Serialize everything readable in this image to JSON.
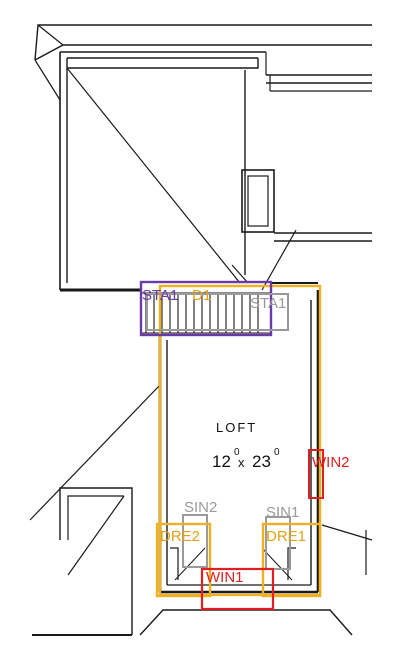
{
  "room": {
    "name": "LOFT",
    "dim_width": "12",
    "dim_width_sup": "0",
    "dim_sep": "x",
    "dim_length": "23",
    "dim_length_sup": "0"
  },
  "annotations": [
    {
      "id": "sta1-label",
      "text": "STA1",
      "color": "#6a3aa8"
    },
    {
      "id": "sta1-gray-label",
      "text": "STA1",
      "color": "#9a9a9a"
    },
    {
      "id": "d1-label",
      "text": "D1",
      "color": "#e0a21a"
    },
    {
      "id": "win2-label",
      "text": "WIN2",
      "color": "#e02020"
    },
    {
      "id": "sin2-label",
      "text": "SIN2",
      "color": "#9a9a9a"
    },
    {
      "id": "sin1-label",
      "text": "SIN1",
      "color": "#9a9a9a"
    },
    {
      "id": "dre2-label",
      "text": "DRE2",
      "color": "#e0a21a"
    },
    {
      "id": "dre1-label",
      "text": "DRE1",
      "color": "#e0a21a"
    },
    {
      "id": "win1-label",
      "text": "WIN1",
      "color": "#e02020"
    }
  ],
  "colors": {
    "linework": "#1a1a1a",
    "loft_outline": "#f0b020",
    "stair": "#6a3aa8",
    "sink": "#9a9a9a",
    "window": "#e02020"
  }
}
